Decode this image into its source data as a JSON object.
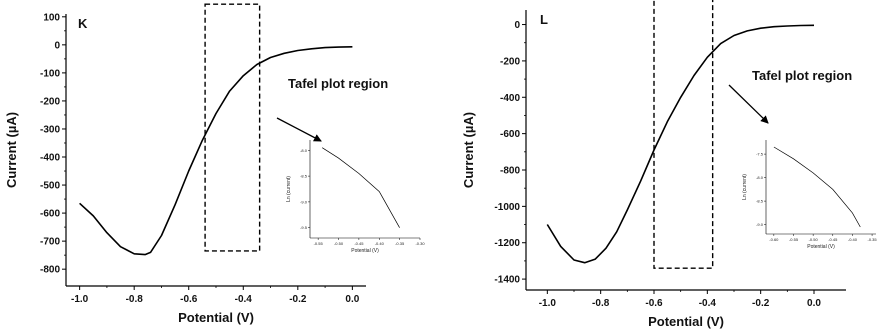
{
  "chart_data": [
    {
      "panel": "K",
      "type": "line",
      "xlabel": "Potential (V)",
      "ylabel": "Current (µA)",
      "xlim": [
        -1.05,
        0.05
      ],
      "ylim": [
        -860,
        110
      ],
      "x_ticks": [
        -1.0,
        -0.8,
        -0.6,
        -0.4,
        -0.2,
        0.0
      ],
      "x_tick_labels": [
        "-1.0",
        "-0.8",
        "-0.6",
        "-0.4",
        "-0.2",
        "0.0"
      ],
      "y_ticks": [
        100,
        0,
        -100,
        -200,
        -300,
        -400,
        -500,
        -600,
        -700,
        -800
      ],
      "y_tick_labels": [
        "100",
        "0",
        "-100",
        "-200",
        "-300",
        "-400",
        "-500",
        "-600",
        "-700",
        "-800"
      ],
      "series": [
        {
          "x": [
            -1.0,
            -0.95,
            -0.9,
            -0.85,
            -0.8,
            -0.76,
            -0.74,
            -0.7,
            -0.65,
            -0.6,
            -0.55,
            -0.5,
            -0.45,
            -0.4,
            -0.35,
            -0.3,
            -0.25,
            -0.2,
            -0.15,
            -0.1,
            -0.05,
            0.0
          ],
          "y": [
            -565,
            -610,
            -670,
            -720,
            -745,
            -748,
            -740,
            -680,
            -570,
            -450,
            -340,
            -245,
            -165,
            -110,
            -70,
            -45,
            -30,
            -20,
            -14,
            -10,
            -8,
            -7
          ]
        }
      ],
      "region_box": {
        "xmin": -0.54,
        "xmax": -0.34,
        "ymin": -735,
        "ymax": 145
      },
      "annotation": "Tafel plot region",
      "inset": {
        "type": "line",
        "xlabel": "Potential (V)",
        "ylabel": "Ln (current)",
        "xlim": [
          -0.57,
          -0.3
        ],
        "ylim": [
          -9.7,
          -7.8
        ],
        "x_ticks": [
          -0.55,
          -0.5,
          -0.45,
          -0.4,
          -0.35,
          -0.3
        ],
        "x_tick_labels": [
          "-0.55",
          "-0.50",
          "-0.45",
          "-0.40",
          "-0.35",
          "-0.30"
        ],
        "y_ticks": [
          -8.0,
          -8.5,
          -9.0,
          -9.5
        ],
        "y_tick_labels": [
          "-8.0",
          "-8.5",
          "-9.0",
          "-9.5"
        ],
        "series": [
          {
            "x": [
              -0.54,
              -0.5,
              -0.45,
              -0.4,
              -0.35
            ],
            "y": [
              -7.95,
              -8.15,
              -8.45,
              -8.8,
              -9.5
            ]
          }
        ]
      }
    },
    {
      "panel": "L",
      "type": "line",
      "xlabel": "Potential (V)",
      "ylabel": "Current (µA)",
      "xlim": [
        -1.08,
        0.12
      ],
      "ylim": [
        -1460,
        80
      ],
      "x_ticks": [
        -1.0,
        -0.8,
        -0.6,
        -0.4,
        -0.2,
        0.0
      ],
      "x_tick_labels": [
        "-1.0",
        "-0.8",
        "-0.6",
        "-0.4",
        "-0.2",
        "0.0"
      ],
      "y_ticks": [
        0,
        -200,
        -400,
        -600,
        -800,
        -1000,
        -1200,
        -1400
      ],
      "y_tick_labels": [
        "0",
        "-200",
        "-400",
        "-600",
        "-800",
        "-1000",
        "-1200",
        "-1400"
      ],
      "series": [
        {
          "x": [
            -1.0,
            -0.95,
            -0.9,
            -0.86,
            -0.82,
            -0.78,
            -0.74,
            -0.7,
            -0.65,
            -0.6,
            -0.55,
            -0.5,
            -0.45,
            -0.4,
            -0.35,
            -0.3,
            -0.25,
            -0.2,
            -0.15,
            -0.1,
            -0.05,
            0.0
          ],
          "y": [
            -1100,
            -1220,
            -1295,
            -1310,
            -1290,
            -1230,
            -1140,
            -1020,
            -860,
            -690,
            -535,
            -400,
            -280,
            -180,
            -105,
            -60,
            -35,
            -20,
            -12,
            -8,
            -5,
            -4
          ]
        }
      ],
      "region_box": {
        "xmin": -0.6,
        "xmax": -0.38,
        "ymin": -1340,
        "ymax": 180
      },
      "annotation": "Tafel plot region",
      "inset": {
        "type": "line",
        "xlabel": "Potential (V)",
        "ylabel": "Ln (current)",
        "xlim": [
          -0.62,
          -0.34
        ],
        "ylim": [
          -9.2,
          -7.2
        ],
        "x_ticks": [
          -0.6,
          -0.55,
          -0.5,
          -0.45,
          -0.4,
          -0.35
        ],
        "x_tick_labels": [
          "-0.60",
          "-0.55",
          "-0.50",
          "-0.45",
          "-0.40",
          "-0.35"
        ],
        "y_ticks": [
          -7.5,
          -8.0,
          -8.5,
          -9.0
        ],
        "y_tick_labels": [
          "-7.5",
          "-8.0",
          "-8.5",
          "-9.0"
        ],
        "series": [
          {
            "x": [
              -0.6,
              -0.55,
              -0.5,
              -0.45,
              -0.4,
              -0.38
            ],
            "y": [
              -7.35,
              -7.6,
              -7.9,
              -8.25,
              -8.75,
              -9.05
            ]
          }
        ]
      }
    }
  ]
}
